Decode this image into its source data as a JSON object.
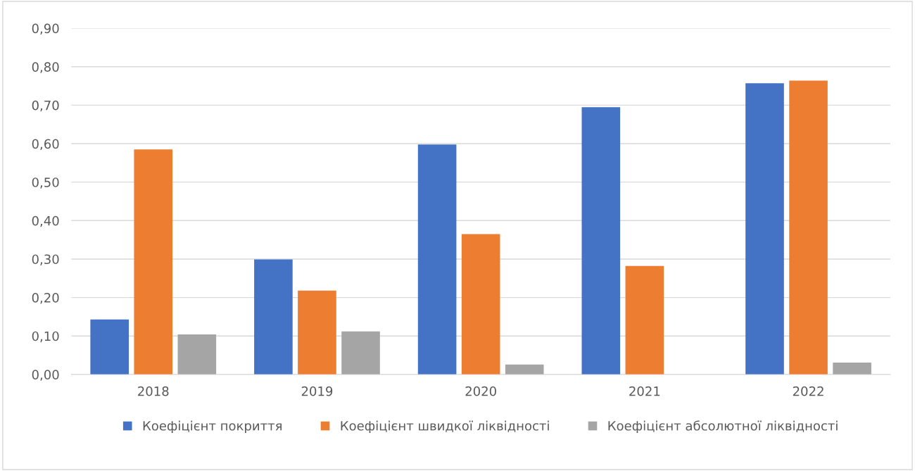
{
  "chart_data": {
    "type": "bar",
    "categories": [
      "2018",
      "2019",
      "2020",
      "2021",
      "2022"
    ],
    "series": [
      {
        "name": "Коефіцієнт покриття",
        "color": "#4472c4",
        "values": [
          0.143,
          0.299,
          0.598,
          0.695,
          0.757
        ]
      },
      {
        "name": "Коефіцієнт швидкої ліквідності",
        "color": "#ed7d31",
        "values": [
          0.585,
          0.218,
          0.365,
          0.282,
          0.764
        ]
      },
      {
        "name": "Коефіцієнт абсолютної ліквідності",
        "color": "#a5a5a5",
        "values": [
          0.104,
          0.112,
          0.026,
          0,
          0.031
        ]
      }
    ],
    "ylim": [
      0,
      0.9
    ],
    "yticks": [
      {
        "value": 0,
        "label": "0,00"
      },
      {
        "value": 0.1,
        "label": "0,10"
      },
      {
        "value": 0.2,
        "label": "0,20"
      },
      {
        "value": 0.3,
        "label": "0,30"
      },
      {
        "value": 0.4,
        "label": "0,40"
      },
      {
        "value": 0.5,
        "label": "0,50"
      },
      {
        "value": 0.6,
        "label": "0,60"
      },
      {
        "value": 0.7,
        "label": "0,70"
      },
      {
        "value": 0.8,
        "label": "0,80"
      },
      {
        "value": 0.9,
        "label": "0,90"
      }
    ],
    "grid": "y",
    "legend": "bottom"
  }
}
